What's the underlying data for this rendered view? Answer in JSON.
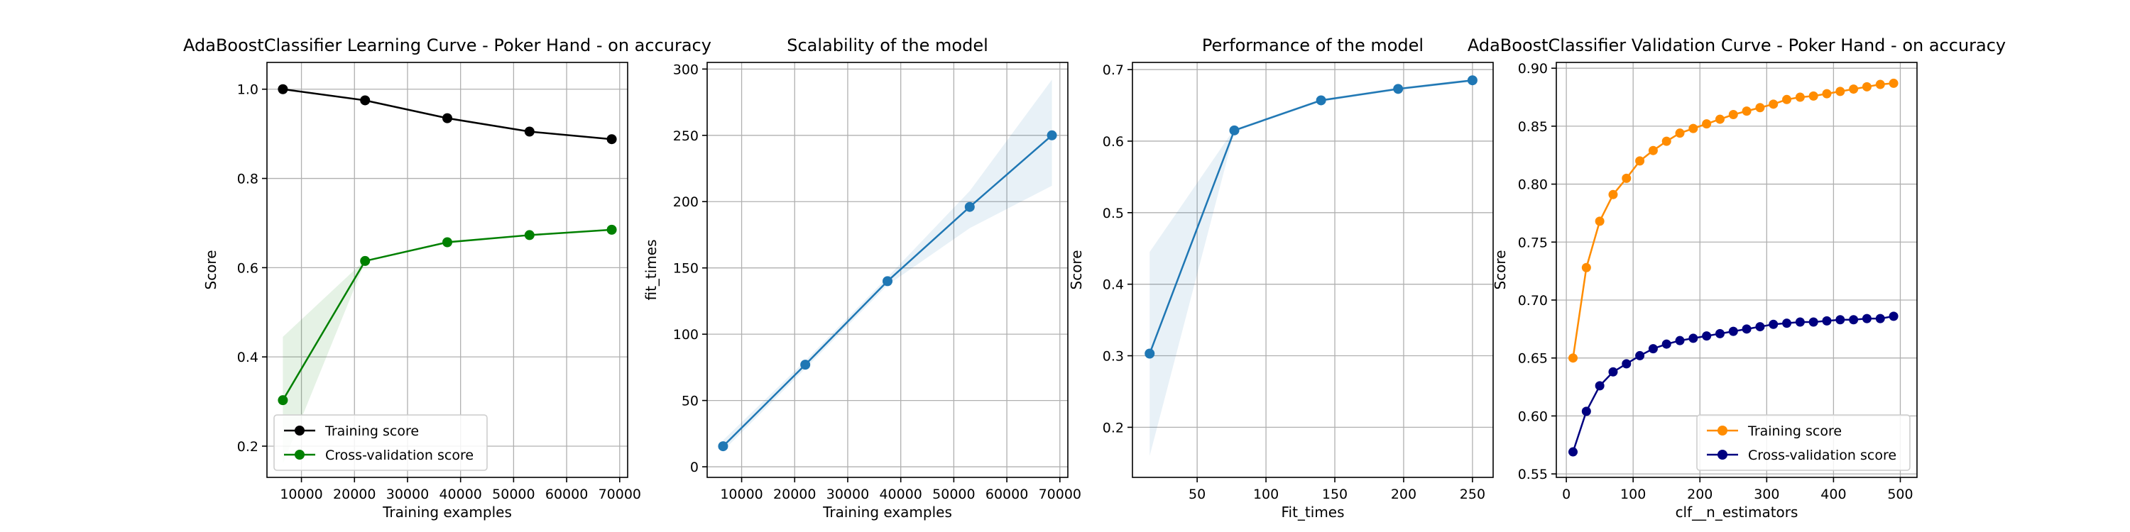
{
  "chart_data": [
    {
      "type": "line",
      "title": "AdaBoostClassifier Learning Curve - Poker Hand - on accuracy",
      "xlabel": "Training examples",
      "ylabel": "Score",
      "xlim": [
        3500,
        71500
      ],
      "ylim": [
        0.13,
        1.06
      ],
      "xticks": [
        10000,
        20000,
        30000,
        40000,
        50000,
        60000,
        70000
      ],
      "yticks": [
        0.2,
        0.4,
        0.6,
        0.8,
        1.0
      ],
      "ytick_decimals": 1,
      "grid": true,
      "legend_position": "lower-left",
      "x": [
        6500,
        22000,
        37500,
        53000,
        68500
      ],
      "series": [
        {
          "name": "Training score",
          "color": "#000000",
          "values": [
            1.0,
            0.975,
            0.935,
            0.905,
            0.888
          ],
          "band_low": [
            1.0,
            0.975,
            0.935,
            0.905,
            0.888
          ],
          "band_high": [
            1.0,
            0.975,
            0.935,
            0.905,
            0.888
          ],
          "band_color": "#000000"
        },
        {
          "name": "Cross-validation score",
          "color": "#008000",
          "values": [
            0.303,
            0.615,
            0.657,
            0.673,
            0.685
          ],
          "band_low": [
            0.16,
            0.613,
            0.655,
            0.671,
            0.683
          ],
          "band_high": [
            0.445,
            0.617,
            0.659,
            0.675,
            0.687
          ],
          "band_color": "#008000"
        }
      ]
    },
    {
      "type": "line",
      "title": "Scalability of the model",
      "xlabel": "Training examples",
      "ylabel": "fit_times",
      "xlim": [
        3500,
        71500
      ],
      "ylim": [
        -8,
        305
      ],
      "xticks": [
        10000,
        20000,
        30000,
        40000,
        50000,
        60000,
        70000
      ],
      "yticks": [
        0,
        50,
        100,
        150,
        200,
        250,
        300
      ],
      "ytick_decimals": 0,
      "grid": true,
      "x": [
        6500,
        22000,
        37500,
        53000,
        68500
      ],
      "series": [
        {
          "color": "#1f77b4",
          "values": [
            15.5,
            77,
            140,
            196,
            250
          ],
          "band_low": [
            12,
            74,
            137,
            180,
            212
          ],
          "band_high": [
            20,
            80,
            143,
            208,
            292
          ],
          "band_color": "#1f77b4"
        }
      ]
    },
    {
      "type": "line",
      "title": "Performance of the model",
      "xlabel": "Fit_times",
      "ylabel": "Score",
      "xlim": [
        3,
        265
      ],
      "ylim": [
        0.13,
        0.71
      ],
      "xticks": [
        50,
        100,
        150,
        200,
        250
      ],
      "yticks": [
        0.2,
        0.3,
        0.4,
        0.5,
        0.6,
        0.7
      ],
      "ytick_decimals": 1,
      "grid": true,
      "x": [
        15.5,
        77,
        140,
        196,
        250
      ],
      "series": [
        {
          "color": "#1f77b4",
          "values": [
            0.303,
            0.615,
            0.657,
            0.673,
            0.685
          ],
          "band_low": [
            0.16,
            0.613,
            0.655,
            0.671,
            0.683
          ],
          "band_high": [
            0.445,
            0.617,
            0.659,
            0.675,
            0.687
          ],
          "band_color": "#1f77b4"
        }
      ]
    },
    {
      "type": "line",
      "title": "AdaBoostClassifier Validation Curve - Poker Hand - on accuracy",
      "xlabel": "clf__n_estimators",
      "ylabel": "Score",
      "xlim": [
        -15,
        525
      ],
      "ylim": [
        0.547,
        0.905
      ],
      "xticks": [
        0,
        100,
        200,
        300,
        400,
        500
      ],
      "yticks": [
        0.55,
        0.6,
        0.65,
        0.7,
        0.75,
        0.8,
        0.85,
        0.9
      ],
      "ytick_decimals": 2,
      "grid": true,
      "legend_position": "lower-right",
      "x": [
        10,
        30,
        50,
        70,
        90,
        110,
        130,
        150,
        170,
        190,
        210,
        230,
        250,
        270,
        290,
        310,
        330,
        350,
        370,
        390,
        410,
        430,
        450,
        470,
        490
      ],
      "series": [
        {
          "name": "Training score",
          "color": "#ff8c00",
          "values": [
            0.65,
            0.728,
            0.768,
            0.791,
            0.805,
            0.82,
            0.829,
            0.837,
            0.844,
            0.848,
            0.852,
            0.856,
            0.86,
            0.863,
            0.866,
            0.869,
            0.873,
            0.875,
            0.876,
            0.878,
            0.88,
            0.882,
            0.884,
            0.886,
            0.887
          ]
        },
        {
          "name": "Cross-validation score",
          "color": "#000080",
          "values": [
            0.569,
            0.604,
            0.626,
            0.638,
            0.645,
            0.652,
            0.658,
            0.662,
            0.665,
            0.667,
            0.669,
            0.671,
            0.673,
            0.675,
            0.677,
            0.679,
            0.68,
            0.681,
            0.681,
            0.682,
            0.683,
            0.683,
            0.684,
            0.684,
            0.686
          ]
        }
      ]
    }
  ]
}
